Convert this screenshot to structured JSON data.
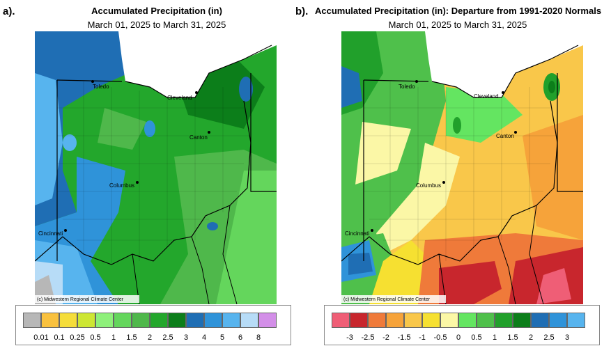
{
  "panel_a": {
    "label": "a).",
    "title": "Accumulated Precipitation (in)",
    "subtitle": "March 01, 2025 to March 31, 2025",
    "credit": "(c) Midwestern Regional Climate Center",
    "legend": {
      "ticks": [
        "0.01",
        "0.1",
        "0.25",
        "0.5",
        "1",
        "1.5",
        "2",
        "2.5",
        "3",
        "4",
        "5",
        "6",
        "8"
      ],
      "colors": [
        "#b7b7b7",
        "#f9c13e",
        "#f5dd3a",
        "#cde633",
        "#8ef07a",
        "#64d65c",
        "#4fb84b",
        "#23a72c",
        "#0c7e1a",
        "#1f6eb4",
        "#2f93d9",
        "#57b4ee",
        "#b7dcf7",
        "#d38fe8"
      ]
    }
  },
  "panel_b": {
    "label": "b).",
    "title": "Accumulated Precipitation (in): Departure from 1991-2020 Normals",
    "subtitle": "March 01, 2025 to March 31, 2025",
    "credit": "(c) Midwestern Regional Climate Center",
    "legend": {
      "ticks": [
        "-3",
        "-2.5",
        "-2",
        "-1.5",
        "-1",
        "-0.5",
        "0",
        "0.5",
        "1",
        "1.5",
        "2",
        "2.5",
        "3"
      ],
      "colors": [
        "#ef5e76",
        "#c8262d",
        "#ef7a3a",
        "#f6a33a",
        "#f9c74a",
        "#f6e031",
        "#fbf7a6",
        "#64e561",
        "#4fc04b",
        "#21a02b",
        "#0c7e1a",
        "#1f6eb4",
        "#2f93d9",
        "#57b4ee"
      ]
    }
  },
  "cities": [
    {
      "name": "Toledo"
    },
    {
      "name": "Cleveland"
    },
    {
      "name": "Canton"
    },
    {
      "name": "Columbus"
    },
    {
      "name": "Cincinnati"
    }
  ],
  "icons": [
    "city-dot-icon"
  ]
}
